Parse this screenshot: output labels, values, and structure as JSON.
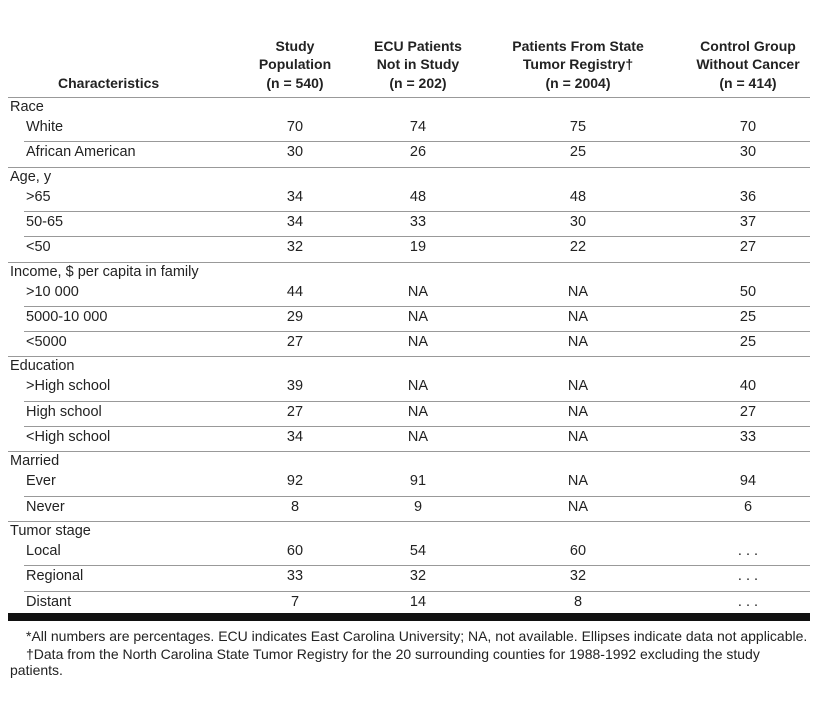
{
  "table": {
    "columns": [
      {
        "lines": [
          "Characteristics"
        ]
      },
      {
        "lines": [
          "Study",
          "Population",
          "(n = 540)"
        ]
      },
      {
        "lines": [
          "ECU Patients",
          "Not in Study",
          "(n = 202)"
        ]
      },
      {
        "lines": [
          "Patients From State",
          "Tumor Registry†",
          "(n = 2004)"
        ]
      },
      {
        "lines": [
          "Control Group",
          "Without Cancer",
          "(n = 414)"
        ]
      }
    ],
    "sections": [
      {
        "title": "Race",
        "rows": [
          {
            "label": "White",
            "cells": [
              70,
              74,
              75,
              70
            ]
          },
          {
            "label": "African American",
            "cells": [
              30,
              26,
              25,
              30
            ]
          }
        ]
      },
      {
        "title": "Age, y",
        "rows": [
          {
            "label": ">65",
            "cells": [
              34,
              48,
              48,
              36
            ]
          },
          {
            "label": "50-65",
            "cells": [
              34,
              33,
              30,
              37
            ]
          },
          {
            "label": "<50",
            "cells": [
              32,
              19,
              22,
              27
            ]
          }
        ]
      },
      {
        "title": "Income, $ per capita in family",
        "rows": [
          {
            "label": ">10 000",
            "cells": [
              44,
              "NA",
              "NA",
              50
            ]
          },
          {
            "label": "5000-10 000",
            "cells": [
              29,
              "NA",
              "NA",
              25
            ]
          },
          {
            "label": "<5000",
            "cells": [
              27,
              "NA",
              "NA",
              25
            ]
          }
        ]
      },
      {
        "title": "Education",
        "rows": [
          {
            "label": ">High school",
            "cells": [
              39,
              "NA",
              "NA",
              40
            ]
          },
          {
            "label": "High school",
            "cells": [
              27,
              "NA",
              "NA",
              27
            ]
          },
          {
            "label": "<High school",
            "cells": [
              34,
              "NA",
              "NA",
              33
            ]
          }
        ]
      },
      {
        "title": "Married",
        "rows": [
          {
            "label": "Ever",
            "cells": [
              92,
              91,
              "NA",
              94
            ]
          },
          {
            "label": "Never",
            "cells": [
              8,
              9,
              "NA",
              6
            ]
          }
        ]
      },
      {
        "title": "Tumor stage",
        "rows": [
          {
            "label": "Local",
            "cells": [
              60,
              54,
              60,
              ". . ."
            ]
          },
          {
            "label": "Regional",
            "cells": [
              33,
              32,
              32,
              ". . ."
            ]
          },
          {
            "label": "Distant",
            "cells": [
              7,
              14,
              8,
              ". . ."
            ]
          }
        ]
      }
    ],
    "footnotes": [
      "*All numbers are percentages. ECU indicates East Carolina University; NA, not available. Ellipses indicate data not applicable.",
      "†Data from the North Carolina State Tumor Registry for the 20 surrounding counties for 1988-1992 excluding the study patients."
    ]
  }
}
